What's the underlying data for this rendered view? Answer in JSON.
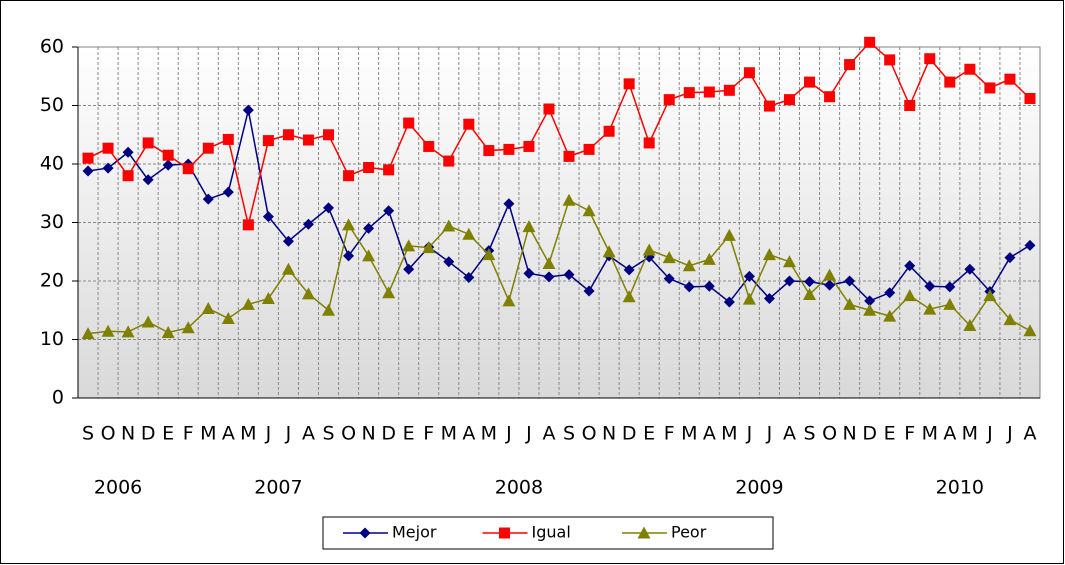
{
  "chart_data": {
    "type": "line",
    "categories": [
      "S",
      "O",
      "N",
      "D",
      "E",
      "F",
      "M",
      "A",
      "M",
      "J",
      "J",
      "A",
      "S",
      "O",
      "N",
      "D",
      "E",
      "F",
      "M",
      "A",
      "M",
      "J",
      "J",
      "A",
      "S",
      "O",
      "N",
      "D",
      "E",
      "F",
      "M",
      "A",
      "M",
      "J",
      "J",
      "A",
      "S",
      "O",
      "N",
      "D",
      "E",
      "F",
      "M",
      "A",
      "M",
      "J",
      "J",
      "A"
    ],
    "year_groups": [
      {
        "label": "2006",
        "months": 4
      },
      {
        "label": "2007",
        "months": 12
      },
      {
        "label": "2008",
        "months": 12
      },
      {
        "label": "2009",
        "months": 12
      },
      {
        "label": "2010",
        "months": 8
      }
    ],
    "series": [
      {
        "name": "Mejor",
        "color": "#000080",
        "marker": "diamond",
        "values": [
          38.8,
          39.3,
          42,
          37.3,
          39.8,
          40,
          34,
          35.2,
          49.2,
          31,
          26.8,
          29.7,
          32.5,
          24.3,
          29,
          32,
          22,
          25.8,
          23.3,
          20.6,
          25.2,
          33.2,
          21.3,
          20.7,
          21.1,
          18.3,
          24.3,
          21.9,
          24.1,
          20.4,
          19,
          19.1,
          16.4,
          20.8,
          17,
          20,
          19.9,
          19.3,
          20,
          16.6,
          18,
          22.6,
          19.1,
          19,
          22,
          18.2,
          24,
          26.1
        ]
      },
      {
        "name": "Igual",
        "color": "#ff0000",
        "marker": "square",
        "values": [
          41,
          42.7,
          38,
          43.6,
          41.5,
          39.2,
          42.7,
          44.2,
          29.6,
          44,
          45,
          44.1,
          45,
          38,
          39.4,
          39,
          47,
          43,
          40.5,
          46.8,
          42.3,
          42.5,
          43,
          49.4,
          41.3,
          42.5,
          45.6,
          53.7,
          43.6,
          51,
          52.2,
          52.3,
          52.6,
          55.6,
          49.9,
          51,
          54,
          51.5,
          57,
          60.8,
          57.8,
          50,
          58,
          54,
          56.2,
          53,
          54.5,
          51.2
        ]
      },
      {
        "name": "Peor",
        "color": "#808000",
        "marker": "triangle",
        "values": [
          11,
          11.4,
          11.3,
          13,
          11.2,
          12,
          15.3,
          13.6,
          16,
          17,
          22,
          17.8,
          15,
          29.6,
          24.3,
          18,
          26,
          25.7,
          29.4,
          28,
          24.5,
          16.6,
          29.3,
          23,
          33.8,
          32,
          25,
          17.3,
          25.3,
          24,
          22.6,
          23.7,
          27.8,
          16.9,
          24.5,
          23.3,
          17.7,
          21,
          16,
          15,
          14,
          17.5,
          15.2,
          16,
          12.4,
          17.5,
          13.4,
          11.5
        ]
      }
    ],
    "ylim": [
      0,
      60
    ],
    "yticks": [
      0,
      10,
      20,
      30,
      40,
      50,
      60
    ],
    "grid": true,
    "legend": "bottom"
  }
}
